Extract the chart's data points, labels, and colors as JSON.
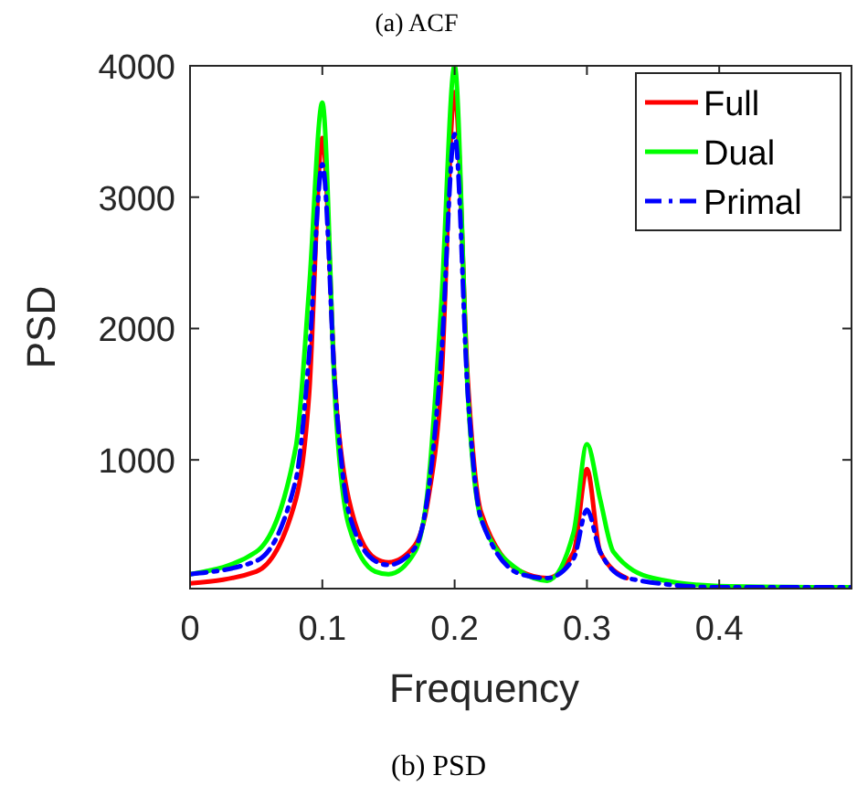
{
  "chart_data": {
    "type": "line",
    "xlabel": "Frequency",
    "ylabel": "PSD",
    "annotations": [
      "(a) ACF",
      "(b) PSD"
    ],
    "xlim": [
      0,
      0.5
    ],
    "xticks": [
      0,
      0.1,
      0.2,
      0.3,
      0.4
    ],
    "ylim": [
      20,
      4000
    ],
    "yticks": [
      1000,
      2000,
      3000,
      4000
    ],
    "grid": false,
    "legend": "top right",
    "marker": "none",
    "series": [
      {
        "name": "Full",
        "color": "#ff0000",
        "line_style": "solid",
        "x": [
          0,
          0.05,
          0.08,
          0.09,
          0.1,
          0.11,
          0.12,
          0.14,
          0.15,
          0.17,
          0.18,
          0.19,
          0.2,
          0.21,
          0.22,
          0.25,
          0.27,
          0.29,
          0.3,
          0.31,
          0.33
        ],
        "values": [
          60,
          150,
          700,
          1500,
          3450,
          1500,
          700,
          250,
          220,
          350,
          700,
          1600,
          3800,
          1600,
          600,
          150,
          100,
          300,
          930,
          300,
          100
        ]
      },
      {
        "name": "Dual",
        "color": "#00ff00",
        "line_style": "solid",
        "x": [
          0,
          0.05,
          0.08,
          0.09,
          0.1,
          0.11,
          0.12,
          0.14,
          0.15,
          0.17,
          0.18,
          0.19,
          0.2,
          0.21,
          0.22,
          0.25,
          0.27,
          0.29,
          0.3,
          0.31,
          0.32,
          0.35,
          0.4,
          0.5
        ],
        "values": [
          130,
          300,
          1100,
          2300,
          3720,
          1400,
          500,
          150,
          130,
          300,
          800,
          2200,
          4000,
          1500,
          550,
          150,
          80,
          450,
          1120,
          700,
          300,
          100,
          40,
          30
        ]
      },
      {
        "name": "Primal",
        "color": "#0000ff",
        "line_style": "dashed",
        "x": [
          0,
          0.05,
          0.08,
          0.09,
          0.1,
          0.11,
          0.12,
          0.14,
          0.15,
          0.17,
          0.18,
          0.19,
          0.2,
          0.21,
          0.22,
          0.25,
          0.27,
          0.29,
          0.3,
          0.31,
          0.33,
          0.4,
          0.5
        ],
        "values": [
          130,
          230,
          850,
          1800,
          3250,
          1500,
          600,
          230,
          200,
          330,
          750,
          1800,
          3480,
          1500,
          550,
          130,
          100,
          250,
          620,
          300,
          100,
          30,
          30
        ]
      }
    ]
  }
}
